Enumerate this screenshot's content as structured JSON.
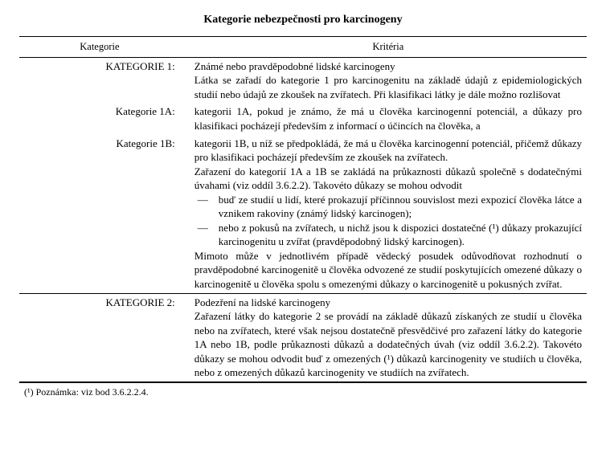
{
  "title": "Kategorie nebezpečnosti pro karcinogeny",
  "table": {
    "header_left": "Kategorie",
    "header_right": "Kritéria"
  },
  "cat1": {
    "label": "KATEGORIE 1:",
    "p1": "Známé nebo pravděpodobné lidské karcinogeny",
    "p2": "Látka se zařadí do kategorie 1 pro karcinogenitu na základě údajů z epidemiologických studií nebo údajů ze zkoušek na zvířatech. Při klasifikaci látky je dále možno rozlišovat",
    "sub1A_label": "Kategorie 1A:",
    "sub1A_text": "kategorii 1A, pokud je známo, že má u člověka karcinogenní potenciál, a důkazy pro klasifikaci pocházejí především z informací o účincích na člověka, a",
    "sub1B_label": "Kategorie 1B:",
    "sub1B_text": "kategorii 1B, u níž se předpokládá, že má u člověka karcinogenní potenciál, přičemž důkazy pro klasifikaci pocházejí především ze zkoušek na zvířatech.",
    "p3": "Zařazení do kategorií 1A a 1B se zakládá na průkaznosti důkazů společně s dodatečnými úvahami (viz oddíl 3.6.2.2). Takovéto důkazy se mohou odvodit",
    "li1": "buď ze studií u lidí, které prokazují příčinnou souvislost mezi expozicí člověka látce a vznikem rakoviny (známý lidský karcinogen);",
    "li2": "nebo z pokusů na zvířatech, u nichž jsou k dispozici dostatečné (¹) důkazy prokazující karcinogenitu u zvířat (pravděpodobný lidský karcinogen).",
    "p4": "Mimoto může v jednotlivém případě vědecký posudek odůvodňovat rozhodnutí o pravděpodobné karcinogenitě u člověka odvozené ze studií poskytujících omezené důkazy o karcinogenitě u člověka spolu s omezenými důkazy o karcinogenitě u pokusných zvířat."
  },
  "cat2": {
    "label": "KATEGORIE 2:",
    "p1": "Podezření na lidské karcinogeny",
    "p2": "Zařazení látky do kategorie 2 se provádí na základě důkazů získaných ze studií u člověka nebo na zvířatech, které však nejsou dostatečně přesvědčivé pro zařazení látky do kategorie 1A nebo 1B, podle průkaznosti důkazů a dodatečných úvah (viz oddíl 3.6.2.2). Takovéto důkazy se mohou odvodit buď z omezených (¹) důkazů karcinogenity ve studiích u člověka, nebo z omezených důkazů karcinogenity ve studiích na zvířatech."
  },
  "footnote": "(¹)   Poznámka: viz bod 3.6.2.2.4."
}
